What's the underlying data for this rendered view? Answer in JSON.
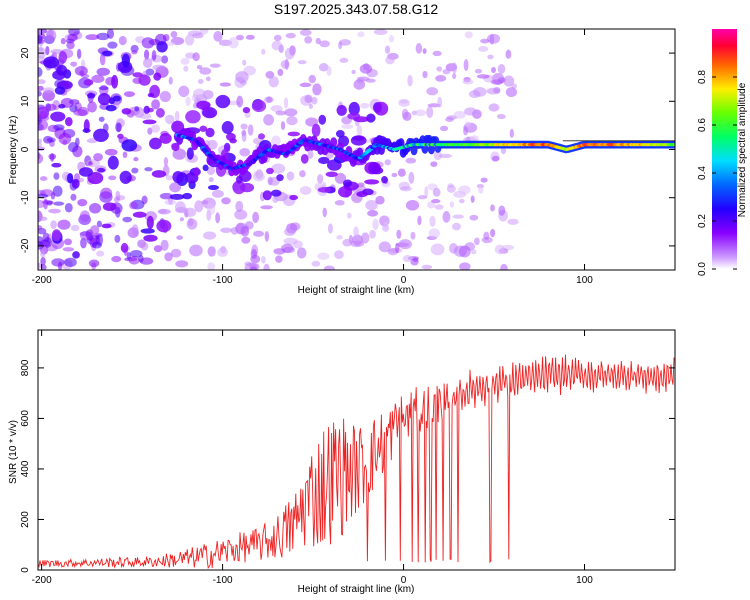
{
  "title": "S197.2025.343.07.58.G12",
  "colors": {
    "snr_line": "#ee2222",
    "spec_low": "#9966ff",
    "spec_mid": "#3300ff",
    "spec_ridge": "#00ccff",
    "spec_high": "#00ff66",
    "spec_peak": "#ff2222"
  },
  "chart_data": [
    {
      "type": "heatmap",
      "title": "",
      "xlabel": "Height of straight line (km)",
      "ylabel": "Frequency (Hz)",
      "xlim": [
        -202,
        150
      ],
      "ylim": [
        -25,
        25
      ],
      "xticks": [
        -200,
        -100,
        0,
        100
      ],
      "xtick_labels": [
        "-200",
        "-100",
        "0",
        "100"
      ],
      "yticks": [
        -20,
        -10,
        0,
        10,
        20
      ],
      "ytick_labels": [
        "-20",
        "-10",
        "0",
        "10",
        "20"
      ],
      "colorbar": {
        "label": "Normalized spectral amplitude",
        "range": [
          0,
          1
        ],
        "ticks": [
          0.0,
          0.2,
          0.4,
          0.6,
          0.8
        ],
        "tick_labels": [
          "0.0",
          "0.2",
          "0.4",
          "0.6",
          "0.8"
        ],
        "colormap": "rainbow (white-purple-blue-cyan-green-yellow-red-magenta)"
      },
      "ridge": {
        "x": [
          -125,
          -115,
          -105,
          -95,
          -85,
          -75,
          -65,
          -55,
          -45,
          -35,
          -25,
          -15,
          -5,
          5,
          15,
          25,
          40,
          60,
          80,
          90,
          100,
          120,
          150
        ],
        "freq": [
          3,
          2,
          -2,
          -4,
          -3,
          0,
          -1,
          2,
          1,
          0,
          -2,
          1,
          0,
          1,
          1,
          1,
          1,
          1,
          1,
          0,
          1,
          1,
          1
        ],
        "amplitude": [
          0.35,
          0.3,
          0.32,
          0.3,
          0.3,
          0.35,
          0.3,
          0.3,
          0.35,
          0.3,
          0.35,
          0.4,
          0.45,
          0.55,
          0.55,
          0.6,
          0.65,
          0.8,
          0.9,
          0.7,
          0.9,
          0.85,
          0.65
        ]
      }
    },
    {
      "type": "line",
      "title": "",
      "xlabel": "Height of straight line (km)",
      "ylabel": "SNR (10 * v/v)",
      "xlim": [
        -202,
        150
      ],
      "ylim": [
        0,
        950
      ],
      "xticks": [
        -200,
        -100,
        0,
        100
      ],
      "xtick_labels": [
        "-200",
        "-100",
        "0",
        "100"
      ],
      "yticks": [
        0,
        200,
        400,
        600,
        800
      ],
      "ytick_labels": [
        "0",
        "200",
        "400",
        "600",
        "800"
      ],
      "series": [
        {
          "name": "SNR",
          "x": [
            -202,
            -180,
            -160,
            -140,
            -120,
            -110,
            -100,
            -90,
            -80,
            -70,
            -60,
            -55,
            -50,
            -45,
            -40,
            -35,
            -30,
            -25,
            -20,
            -15,
            -10,
            -5,
            0,
            10,
            20,
            30,
            40,
            50,
            60,
            70,
            80,
            90,
            100,
            110,
            120,
            130,
            140,
            150
          ],
          "mean": [
            25,
            28,
            30,
            32,
            45,
            55,
            70,
            90,
            100,
            130,
            180,
            260,
            300,
            330,
            360,
            380,
            390,
            400,
            430,
            470,
            520,
            560,
            600,
            630,
            660,
            690,
            720,
            740,
            750,
            760,
            770,
            775,
            770,
            770,
            770,
            770,
            760,
            770
          ],
          "spread": [
            15,
            15,
            20,
            20,
            40,
            50,
            60,
            60,
            70,
            90,
            140,
            180,
            220,
            260,
            260,
            260,
            200,
            180,
            160,
            150,
            130,
            120,
            110,
            100,
            90,
            80,
            80,
            80,
            75,
            80,
            80,
            80,
            75,
            75,
            70,
            70,
            70,
            70
          ],
          "dropouts_x": [
            -20,
            -10,
            -2,
            5,
            8,
            12,
            15,
            18,
            22,
            26,
            30,
            48,
            58
          ]
        }
      ]
    }
  ]
}
